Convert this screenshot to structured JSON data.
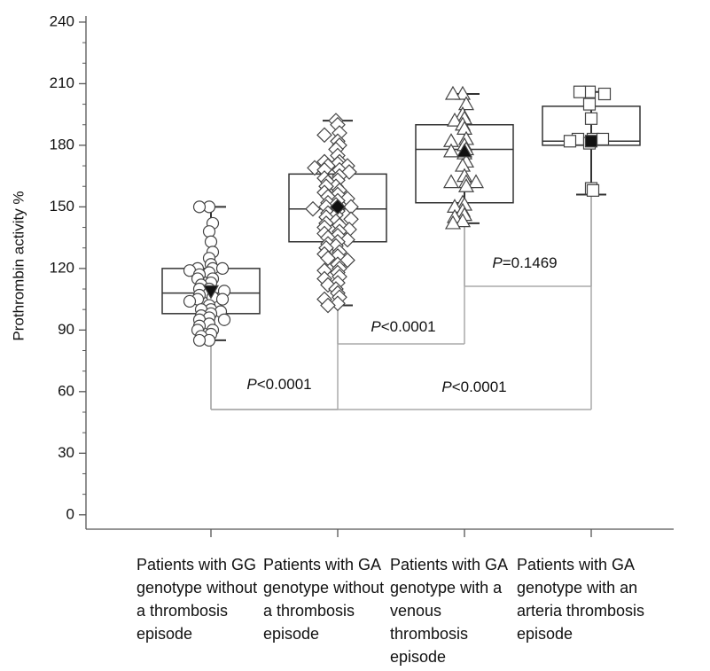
{
  "chart_data": {
    "type": "box",
    "y_label": "Prothrombin activity %",
    "ylim": [
      -7,
      243
    ],
    "yticks": [
      0,
      30,
      60,
      90,
      120,
      150,
      180,
      210,
      240
    ],
    "minor_step": 10,
    "categories": [
      "Patients with GG genotype without a thrombosis episode",
      "Patients with GA genotype without a thrombosis episode",
      "Patients with GA genotype with a venous thrombosis episode",
      "Patients with GA genotype with an arteria thrombosis episode"
    ],
    "boxes": [
      {
        "marker": "circle",
        "mean_marker": "triangle-down",
        "whisker_low": 85,
        "q1": 98,
        "median": 108,
        "q3": 120,
        "whisker_high": 150,
        "mean": 109,
        "points": [
          150,
          150,
          142,
          138,
          133,
          128,
          125,
          122,
          120,
          120,
          120,
          119,
          118,
          117,
          115,
          115,
          113,
          112,
          110,
          110,
          109,
          108,
          107,
          106,
          105,
          105,
          104,
          102,
          100,
          100,
          99,
          98,
          97,
          96,
          95,
          95,
          93,
          92,
          90,
          90,
          88,
          87,
          85,
          85
        ]
      },
      {
        "marker": "diamond",
        "mean_marker": "diamond",
        "whisker_low": 102,
        "q1": 133,
        "median": 149,
        "q3": 166,
        "whisker_high": 192,
        "mean": 150,
        "points": [
          192,
          190,
          186,
          185,
          182,
          180,
          178,
          175,
          172,
          172,
          171,
          170,
          170,
          169,
          168,
          168,
          167,
          165,
          164,
          163,
          162,
          160,
          160,
          158,
          157,
          156,
          155,
          154,
          153,
          152,
          151,
          150,
          150,
          149,
          148,
          147,
          146,
          145,
          144,
          143,
          142,
          141,
          140,
          139,
          138,
          137,
          136,
          135,
          134,
          133,
          132,
          131,
          130,
          128,
          127,
          126,
          125,
          124,
          122,
          120,
          119,
          118,
          116,
          115,
          113,
          112,
          110,
          108,
          106,
          105,
          103,
          102
        ]
      },
      {
        "marker": "triangle",
        "mean_marker": "triangle",
        "whisker_low": 142,
        "q1": 152,
        "median": 178,
        "q3": 190,
        "whisker_high": 205,
        "mean": 177,
        "points": [
          205,
          205,
          200,
          195,
          193,
          192,
          190,
          188,
          183,
          182,
          180,
          178,
          177,
          176,
          172,
          170,
          165,
          162,
          162,
          162,
          160,
          152,
          151,
          150,
          148,
          146,
          145,
          143,
          142
        ]
      },
      {
        "marker": "square",
        "mean_marker": "square",
        "whisker_low": 156,
        "q1": 180,
        "median": 182,
        "q3": 199,
        "whisker_high": 206,
        "mean": 182,
        "points": [
          206,
          206,
          205,
          200,
          193,
          183,
          183,
          183,
          182,
          181,
          159,
          158
        ]
      }
    ],
    "comparisons": [
      {
        "text": "P<0.0001",
        "groups": [
          0,
          1
        ]
      },
      {
        "text": "P<0.0001",
        "groups": [
          1,
          2
        ]
      },
      {
        "text": "P=0.1469",
        "groups": [
          2,
          3
        ]
      },
      {
        "text": "P<0.0001",
        "groups": [
          0,
          3
        ]
      }
    ]
  }
}
